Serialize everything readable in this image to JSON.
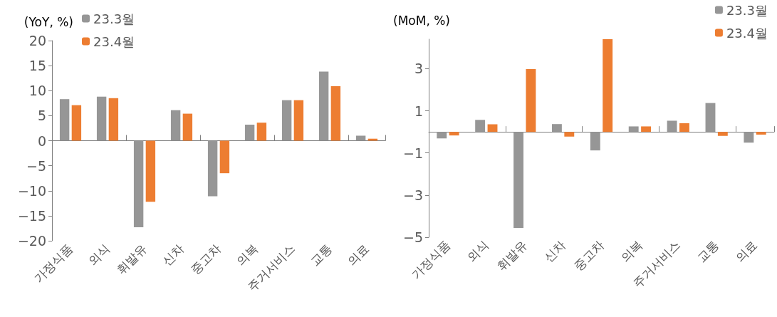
{
  "chart_data": [
    {
      "type": "bar",
      "ylabel": "(YoY, %)",
      "categories": [
        "가정식품",
        "외식",
        "휘발유",
        "신차",
        "중고차",
        "의복",
        "주거서비스",
        "교통",
        "의료"
      ],
      "series": [
        {
          "name": "23.3월",
          "color": "#969696",
          "values": [
            8.3,
            8.8,
            -17.3,
            6.1,
            -11.1,
            3.2,
            8.1,
            13.8,
            1.0
          ]
        },
        {
          "name": "23.4월",
          "color": "#ed7d31",
          "values": [
            7.1,
            8.5,
            -12.2,
            5.4,
            -6.5,
            3.6,
            8.1,
            10.9,
            0.4
          ]
        }
      ],
      "ylim": [
        -20,
        20
      ],
      "yticks": [
        -20,
        -15,
        -10,
        -5,
        0,
        5,
        10,
        15,
        20
      ],
      "legend": "top left"
    },
    {
      "type": "bar",
      "ylabel": "(MoM, %)",
      "categories": [
        "가정식품",
        "외식",
        "휘발유",
        "신차",
        "중고차",
        "의복",
        "주거서비스",
        "교통",
        "의료"
      ],
      "series": [
        {
          "name": "23.3월",
          "color": "#969696",
          "values": [
            -0.31,
            0.57,
            -4.56,
            0.37,
            -0.88,
            0.26,
            0.53,
            1.37,
            -0.51
          ]
        },
        {
          "name": "23.4월",
          "color": "#ed7d31",
          "values": [
            -0.17,
            0.36,
            2.98,
            -0.22,
            4.4,
            0.26,
            0.41,
            -0.19,
            -0.13
          ]
        }
      ],
      "ylim": [
        -5,
        4.4
      ],
      "yticks": [
        -5,
        -3,
        -1,
        1,
        3
      ],
      "legend": "top right"
    }
  ]
}
